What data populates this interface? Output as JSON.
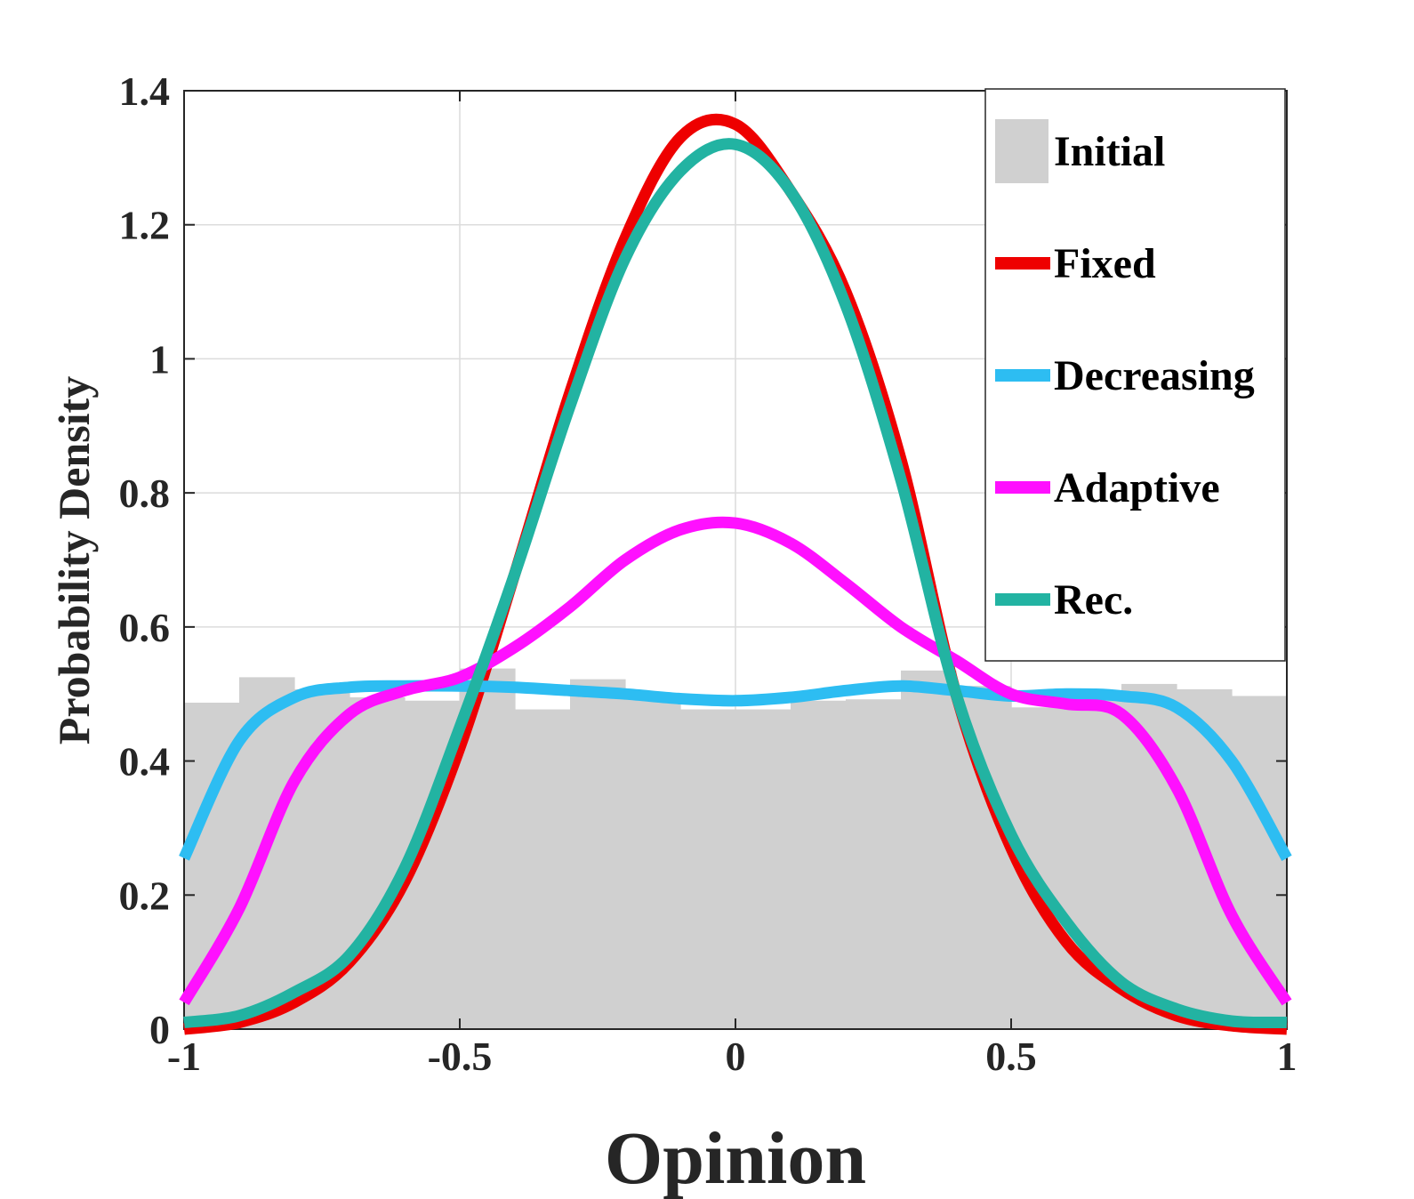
{
  "chart_data": {
    "type": "line",
    "title": "",
    "xlabel": "Opinion",
    "ylabel": "Probability Density",
    "xlim": [
      -1,
      1
    ],
    "ylim": [
      0,
      1.4
    ],
    "grid": true,
    "legend_position": "top-right",
    "x_ticks": [
      {
        "value": -1,
        "label": "-1"
      },
      {
        "value": -0.5,
        "label": "-0.5"
      },
      {
        "value": 0,
        "label": "0"
      },
      {
        "value": 0.5,
        "label": "0.5"
      },
      {
        "value": 1,
        "label": "1"
      }
    ],
    "y_ticks": [
      {
        "value": 0,
        "label": "0"
      },
      {
        "value": 0.2,
        "label": "0.2"
      },
      {
        "value": 0.4,
        "label": "0.4"
      },
      {
        "value": 0.6,
        "label": "0.6"
      },
      {
        "value": 0.8,
        "label": "0.8"
      },
      {
        "value": 1,
        "label": "1"
      },
      {
        "value": 1.2,
        "label": "1.2"
      },
      {
        "value": 1.4,
        "label": "1.4"
      }
    ],
    "histogram": {
      "name": "Initial",
      "color": "#d0d0d0",
      "bin_edges": [
        -1,
        -0.9,
        -0.8,
        -0.7,
        -0.6,
        -0.5,
        -0.4,
        -0.3,
        -0.2,
        -0.1,
        0,
        0.1,
        0.2,
        0.3,
        0.4,
        0.5,
        0.6,
        0.7,
        0.8,
        0.9,
        1
      ],
      "values": [
        0.487,
        0.525,
        0.507,
        0.495,
        0.49,
        0.538,
        0.477,
        0.522,
        0.5,
        0.477,
        0.477,
        0.49,
        0.492,
        0.535,
        0.512,
        0.48,
        0.5,
        0.515,
        0.507,
        0.497
      ]
    },
    "series": [
      {
        "name": "Fixed",
        "color": "#ee0000",
        "x": [
          -1,
          -0.9,
          -0.8,
          -0.7,
          -0.6,
          -0.5,
          -0.4,
          -0.3,
          -0.2,
          -0.1,
          0,
          0.1,
          0.2,
          0.3,
          0.4,
          0.5,
          0.6,
          0.7,
          0.8,
          0.9,
          1
        ],
        "y": [
          0,
          0.01,
          0.04,
          0.1,
          0.22,
          0.42,
          0.68,
          0.95,
          1.18,
          1.33,
          1.35,
          1.25,
          1.1,
          0.85,
          0.5,
          0.27,
          0.13,
          0.06,
          0.02,
          0.005,
          0
        ]
      },
      {
        "name": "Decreasing",
        "color": "#2dbdf2",
        "x": [
          -1,
          -0.9,
          -0.8,
          -0.7,
          -0.6,
          -0.5,
          -0.4,
          -0.3,
          -0.2,
          -0.1,
          0,
          0.1,
          0.2,
          0.3,
          0.4,
          0.5,
          0.6,
          0.7,
          0.8,
          0.9,
          1
        ],
        "y": [
          0.255,
          0.43,
          0.495,
          0.51,
          0.512,
          0.512,
          0.51,
          0.505,
          0.5,
          0.493,
          0.49,
          0.495,
          0.505,
          0.512,
          0.505,
          0.497,
          0.5,
          0.497,
          0.48,
          0.4,
          0.255
        ]
      },
      {
        "name": "Adaptive",
        "color": "#ff10ff",
        "x": [
          -1,
          -0.9,
          -0.8,
          -0.7,
          -0.6,
          -0.5,
          -0.4,
          -0.3,
          -0.2,
          -0.1,
          0,
          0.1,
          0.2,
          0.3,
          0.4,
          0.5,
          0.6,
          0.7,
          0.8,
          0.9,
          1
        ],
        "y": [
          0.04,
          0.18,
          0.37,
          0.47,
          0.505,
          0.525,
          0.57,
          0.63,
          0.7,
          0.745,
          0.755,
          0.725,
          0.665,
          0.6,
          0.55,
          0.5,
          0.485,
          0.47,
          0.36,
          0.17,
          0.04
        ]
      },
      {
        "name": "Rec.",
        "color": "#22b3a2",
        "x": [
          -1,
          -0.9,
          -0.8,
          -0.7,
          -0.6,
          -0.5,
          -0.4,
          -0.3,
          -0.2,
          -0.1,
          0,
          0.1,
          0.2,
          0.3,
          0.4,
          0.5,
          0.6,
          0.7,
          0.8,
          0.9,
          1
        ],
        "y": [
          0.01,
          0.02,
          0.055,
          0.11,
          0.24,
          0.45,
          0.68,
          0.93,
          1.15,
          1.28,
          1.32,
          1.25,
          1.08,
          0.82,
          0.5,
          0.29,
          0.16,
          0.07,
          0.03,
          0.012,
          0.01
        ]
      }
    ]
  },
  "legend": {
    "items": [
      {
        "label": "Initial",
        "color": "#d0d0d0",
        "kind": "patch"
      },
      {
        "label": "Fixed",
        "color": "#ee0000",
        "kind": "line"
      },
      {
        "label": "Decreasing",
        "color": "#2dbdf2",
        "kind": "line"
      },
      {
        "label": "Adaptive",
        "color": "#ff10ff",
        "kind": "line"
      },
      {
        "label": "Rec.",
        "color": "#22b3a2",
        "kind": "line"
      }
    ]
  }
}
